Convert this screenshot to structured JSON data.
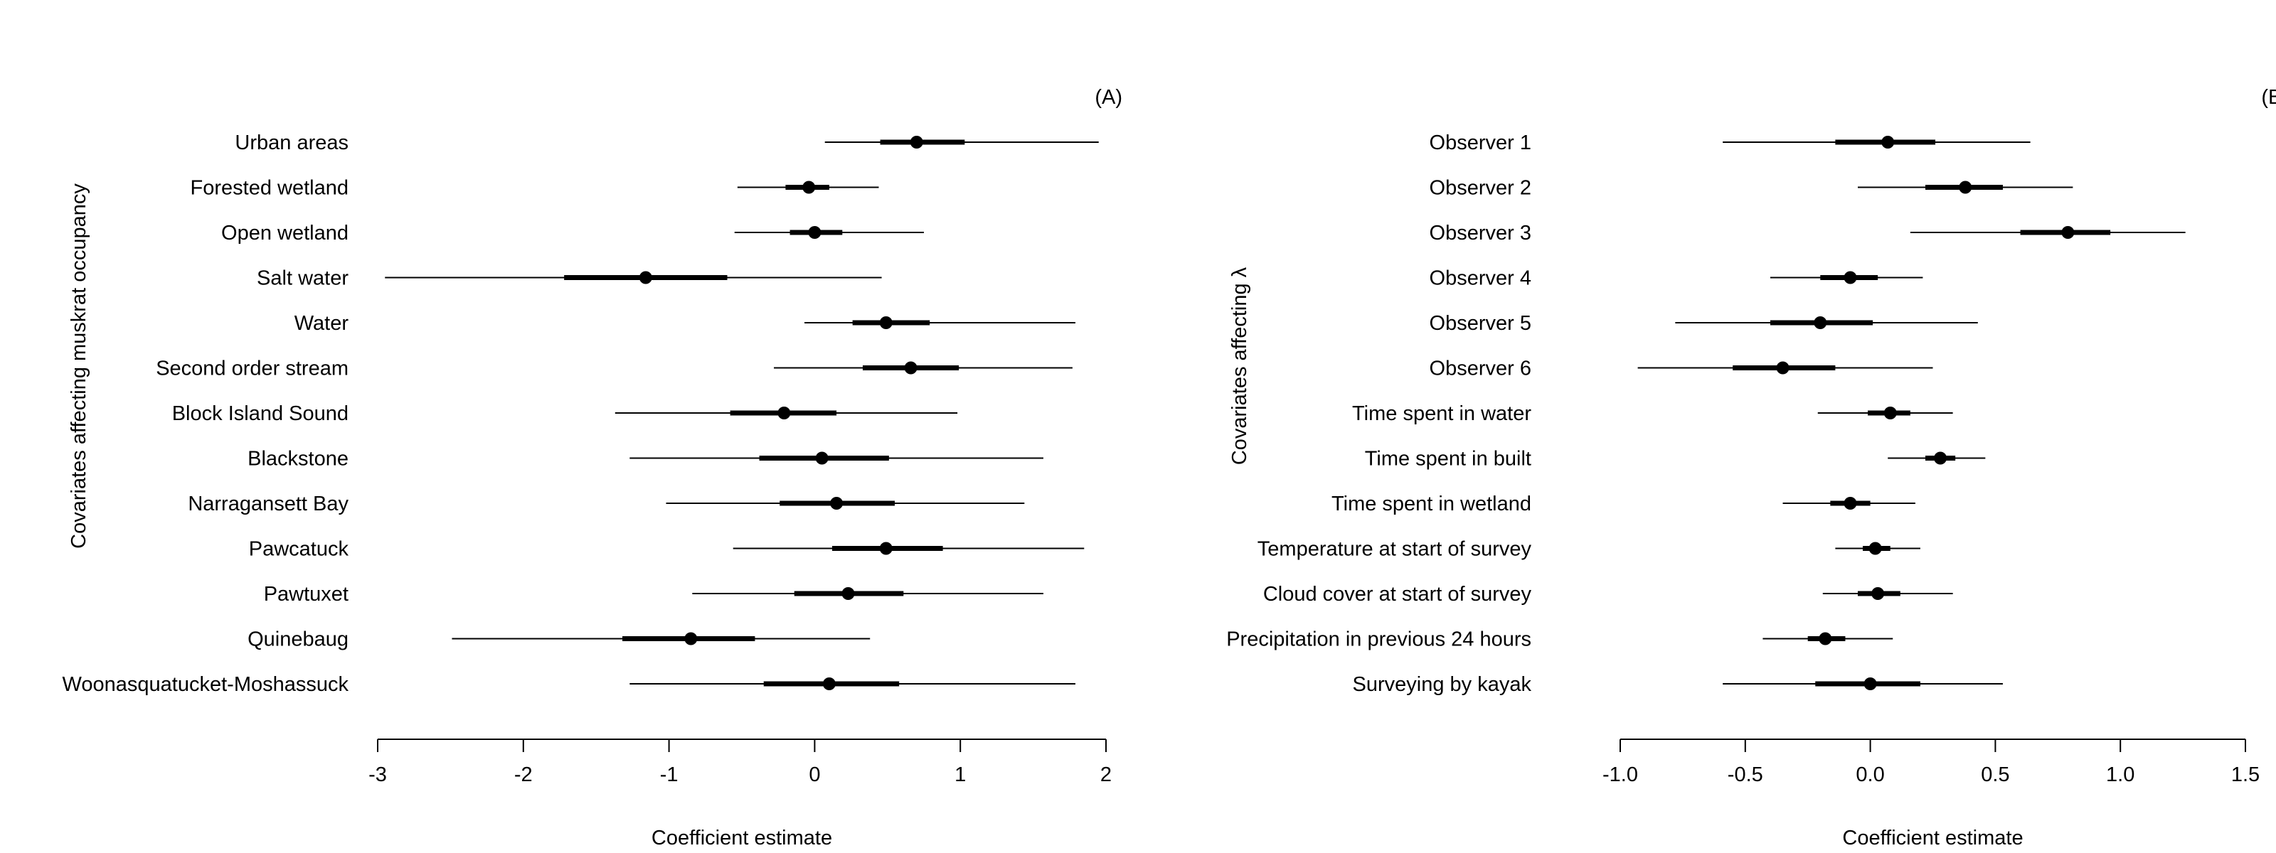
{
  "chart_data": [
    {
      "type": "forest",
      "panel_label": "(A)",
      "xlabel": "Coefficient estimate",
      "ylabel": "Covariates affecting muskrat occupancy",
      "xlim": [
        -3,
        2
      ],
      "xticks": [
        -3,
        -2,
        -1,
        0,
        1,
        2
      ],
      "xtick_labels": [
        "-3",
        "-2",
        "-1",
        "0",
        "1",
        "2"
      ],
      "covariates": [
        {
          "label": "Urban areas",
          "estimate": 0.7,
          "inner": [
            0.45,
            1.03
          ],
          "outer": [
            0.07,
            1.95
          ]
        },
        {
          "label": "Forested wetland",
          "estimate": -0.04,
          "inner": [
            -0.2,
            0.1
          ],
          "outer": [
            -0.53,
            0.44
          ]
        },
        {
          "label": "Open wetland",
          "estimate": 0.0,
          "inner": [
            -0.17,
            0.19
          ],
          "outer": [
            -0.55,
            0.75
          ]
        },
        {
          "label": "Salt water",
          "estimate": -1.16,
          "inner": [
            -1.72,
            -0.6
          ],
          "outer": [
            -2.95,
            0.46
          ]
        },
        {
          "label": "Water",
          "estimate": 0.49,
          "inner": [
            0.26,
            0.79
          ],
          "outer": [
            -0.07,
            1.79
          ]
        },
        {
          "label": "Second order stream",
          "estimate": 0.66,
          "inner": [
            0.33,
            0.99
          ],
          "outer": [
            -0.28,
            1.77
          ]
        },
        {
          "label": "Block Island Sound",
          "estimate": -0.21,
          "inner": [
            -0.58,
            0.15
          ],
          "outer": [
            -1.37,
            0.98
          ]
        },
        {
          "label": "Blackstone",
          "estimate": 0.05,
          "inner": [
            -0.38,
            0.51
          ],
          "outer": [
            -1.27,
            1.57
          ]
        },
        {
          "label": "Narragansett Bay",
          "estimate": 0.15,
          "inner": [
            -0.24,
            0.55
          ],
          "outer": [
            -1.02,
            1.44
          ]
        },
        {
          "label": "Pawcatuck",
          "estimate": 0.49,
          "inner": [
            0.12,
            0.88
          ],
          "outer": [
            -0.56,
            1.85
          ]
        },
        {
          "label": "Pawtuxet",
          "estimate": 0.23,
          "inner": [
            -0.14,
            0.61
          ],
          "outer": [
            -0.84,
            1.57
          ]
        },
        {
          "label": "Quinebaug",
          "estimate": -0.85,
          "inner": [
            -1.32,
            -0.41
          ],
          "outer": [
            -2.49,
            0.38
          ]
        },
        {
          "label": "Woonasquatucket-Moshassuck",
          "estimate": 0.1,
          "inner": [
            -0.35,
            0.58
          ],
          "outer": [
            -1.27,
            1.79
          ]
        }
      ]
    },
    {
      "type": "forest",
      "panel_label": "(B)",
      "xlabel": "Coefficient estimate",
      "ylabel": "Covariates affecting λ",
      "xlim": [
        -1.0,
        1.5
      ],
      "xticks": [
        -1.0,
        -0.5,
        0.0,
        0.5,
        1.0,
        1.5
      ],
      "xtick_labels": [
        "-1.0",
        "-0.5",
        "0.0",
        "0.5",
        "1.0",
        "1.5"
      ],
      "covariates": [
        {
          "label": "Observer 1",
          "estimate": 0.07,
          "inner": [
            -0.14,
            0.26
          ],
          "outer": [
            -0.59,
            0.64
          ]
        },
        {
          "label": "Observer 2",
          "estimate": 0.38,
          "inner": [
            0.22,
            0.53
          ],
          "outer": [
            -0.05,
            0.81
          ]
        },
        {
          "label": "Observer 3",
          "estimate": 0.79,
          "inner": [
            0.6,
            0.96
          ],
          "outer": [
            0.16,
            1.26
          ]
        },
        {
          "label": "Observer 4",
          "estimate": -0.08,
          "inner": [
            -0.2,
            0.03
          ],
          "outer": [
            -0.4,
            0.21
          ]
        },
        {
          "label": "Observer 5",
          "estimate": -0.2,
          "inner": [
            -0.4,
            0.01
          ],
          "outer": [
            -0.78,
            0.43
          ]
        },
        {
          "label": "Observer 6",
          "estimate": -0.35,
          "inner": [
            -0.55,
            -0.14
          ],
          "outer": [
            -0.93,
            0.25
          ]
        },
        {
          "label": "Time spent in water",
          "estimate": 0.08,
          "inner": [
            -0.01,
            0.16
          ],
          "outer": [
            -0.21,
            0.33
          ]
        },
        {
          "label": "Time spent in built",
          "estimate": 0.28,
          "inner": [
            0.22,
            0.34
          ],
          "outer": [
            0.07,
            0.46
          ]
        },
        {
          "label": "Time spent in wetland",
          "estimate": -0.08,
          "inner": [
            -0.16,
            0.0
          ],
          "outer": [
            -0.35,
            0.18
          ]
        },
        {
          "label": "Temperature at start of survey",
          "estimate": 0.02,
          "inner": [
            -0.03,
            0.08
          ],
          "outer": [
            -0.14,
            0.2
          ]
        },
        {
          "label": "Cloud cover at start of survey",
          "estimate": 0.03,
          "inner": [
            -0.05,
            0.12
          ],
          "outer": [
            -0.19,
            0.33
          ]
        },
        {
          "label": "Precipitation in previous 24 hours",
          "estimate": -0.18,
          "inner": [
            -0.25,
            -0.1
          ],
          "outer": [
            -0.43,
            0.09
          ]
        },
        {
          "label": "Surveying by kayak",
          "estimate": 0.0,
          "inner": [
            -0.22,
            0.2
          ],
          "outer": [
            -0.59,
            0.53
          ]
        }
      ]
    }
  ]
}
